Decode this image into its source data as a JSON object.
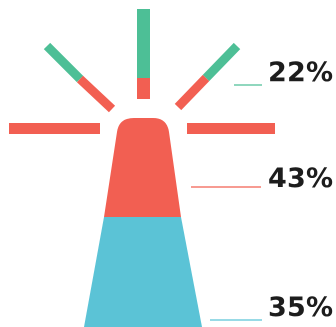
{
  "chart_data": {
    "type": "infographic",
    "segments": [
      {
        "label": "22%",
        "value": 22,
        "color": "#4dbf96"
      },
      {
        "label": "43%",
        "value": 43,
        "color": "#f25f52"
      },
      {
        "label": "35%",
        "value": 35,
        "color": "#5bc3d6"
      }
    ],
    "title": "",
    "legend": "none"
  }
}
